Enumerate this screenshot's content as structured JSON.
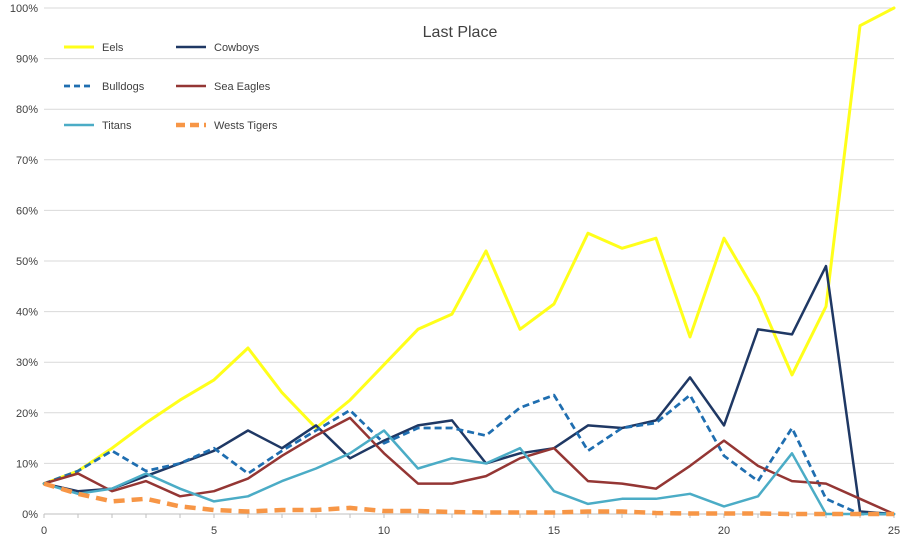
{
  "chart_data": {
    "type": "line",
    "title": "Last Place",
    "xlabel": "",
    "ylabel": "",
    "xlim": [
      0,
      25
    ],
    "ylim": [
      0,
      1
    ],
    "x_ticks": [
      0,
      5,
      10,
      15,
      20,
      25
    ],
    "y_ticks": [
      "0%",
      "10%",
      "20%",
      "30%",
      "40%",
      "50%",
      "60%",
      "70%",
      "80%",
      "90%",
      "100%"
    ],
    "grid": "horizontal",
    "legend_position": "top-left",
    "x": [
      0,
      1,
      2,
      3,
      4,
      5,
      6,
      7,
      8,
      9,
      10,
      11,
      12,
      13,
      14,
      15,
      16,
      17,
      18,
      19,
      20,
      21,
      22,
      23,
      24,
      25
    ],
    "series": [
      {
        "name": "Eels",
        "color": "#FFFF1A",
        "dash": "solid",
        "values": [
          0.06,
          0.085,
          0.13,
          0.18,
          0.225,
          0.265,
          0.328,
          0.24,
          0.17,
          0.225,
          0.295,
          0.365,
          0.395,
          0.52,
          0.365,
          0.415,
          0.555,
          0.525,
          0.545,
          0.35,
          0.545,
          0.43,
          0.275,
          0.41,
          0.965,
          1.0
        ]
      },
      {
        "name": "Cowboys",
        "color": "#1F3864",
        "dash": "solid",
        "values": [
          0.06,
          0.045,
          0.05,
          0.075,
          0.1,
          0.125,
          0.165,
          0.13,
          0.175,
          0.11,
          0.145,
          0.175,
          0.185,
          0.1,
          0.12,
          0.13,
          0.175,
          0.17,
          0.185,
          0.27,
          0.175,
          0.365,
          0.355,
          0.49,
          0.005,
          0.0
        ]
      },
      {
        "name": "Bulldogs",
        "color": "#1F6EB0",
        "dash": "dashed",
        "values": [
          0.06,
          0.085,
          0.125,
          0.085,
          0.1,
          0.13,
          0.08,
          0.125,
          0.165,
          0.205,
          0.14,
          0.17,
          0.17,
          0.155,
          0.21,
          0.235,
          0.125,
          0.17,
          0.18,
          0.235,
          0.115,
          0.065,
          0.17,
          0.03,
          0.0,
          0.0
        ]
      },
      {
        "name": "Sea Eagles",
        "color": "#943634",
        "dash": "solid",
        "values": [
          0.06,
          0.08,
          0.045,
          0.065,
          0.035,
          0.045,
          0.07,
          0.115,
          0.155,
          0.19,
          0.12,
          0.06,
          0.06,
          0.075,
          0.11,
          0.13,
          0.065,
          0.06,
          0.05,
          0.095,
          0.145,
          0.095,
          0.065,
          0.06,
          0.03,
          0.0
        ]
      },
      {
        "name": "Titans",
        "color": "#4BACC6",
        "dash": "solid",
        "values": [
          0.06,
          0.04,
          0.05,
          0.08,
          0.05,
          0.025,
          0.035,
          0.065,
          0.09,
          0.12,
          0.165,
          0.09,
          0.11,
          0.1,
          0.13,
          0.045,
          0.02,
          0.03,
          0.03,
          0.04,
          0.015,
          0.035,
          0.12,
          0.0,
          0.0,
          0.0
        ]
      },
      {
        "name": "Wests Tigers",
        "color": "#F79646",
        "dash": "dashed",
        "values": [
          0.06,
          0.04,
          0.025,
          0.03,
          0.015,
          0.008,
          0.005,
          0.008,
          0.008,
          0.012,
          0.006,
          0.006,
          0.004,
          0.003,
          0.003,
          0.003,
          0.005,
          0.005,
          0.002,
          0.001,
          0.001,
          0.001,
          0.0,
          0.0,
          0.0,
          0.0
        ]
      }
    ]
  }
}
